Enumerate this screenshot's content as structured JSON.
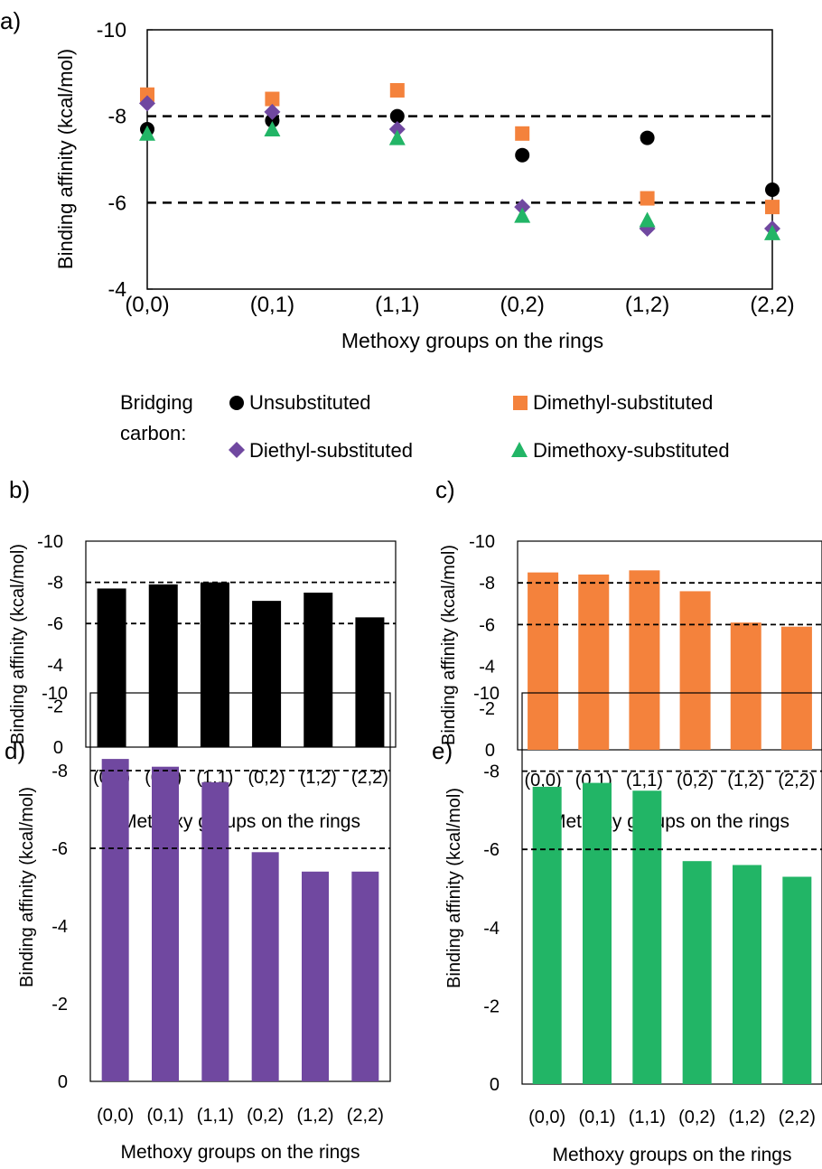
{
  "colors": {
    "unsubstituted": "#000000",
    "dimethyl": "#F4823C",
    "diethyl": "#7048A0",
    "dimethoxy": "#22B566"
  },
  "legend": {
    "title_line1": "Bridging",
    "title_line2": "carbon:",
    "items": [
      {
        "label": "Unsubstituted",
        "marker": "circle",
        "color": "#000000"
      },
      {
        "label": "Dimethyl-substituted",
        "marker": "square",
        "color": "#F4823C"
      },
      {
        "label": "Diethyl-substituted",
        "marker": "diamond",
        "color": "#7048A0"
      },
      {
        "label": "Dimethoxy-substituted",
        "marker": "triangle",
        "color": "#22B566"
      }
    ]
  },
  "chart_data": [
    {
      "panel": "a)",
      "type": "scatter",
      "categories": [
        "(0,0)",
        "(0,1)",
        "(1,1)",
        "(0,2)",
        "(1,2)",
        "(2,2)"
      ],
      "series": [
        {
          "name": "Unsubstituted",
          "marker": "circle",
          "color": "#000000",
          "values": [
            -7.7,
            -7.9,
            -8.0,
            -7.1,
            -7.5,
            -6.3
          ]
        },
        {
          "name": "Dimethyl-substituted",
          "marker": "square",
          "color": "#F4823C",
          "values": [
            -8.5,
            -8.4,
            -8.6,
            -7.6,
            -6.1,
            -5.9
          ]
        },
        {
          "name": "Diethyl-substituted",
          "marker": "diamond",
          "color": "#7048A0",
          "values": [
            -8.3,
            -8.1,
            -7.7,
            -5.9,
            -5.4,
            -5.4
          ]
        },
        {
          "name": "Dimethoxy-substituted",
          "marker": "triangle",
          "color": "#22B566",
          "values": [
            -7.6,
            -7.7,
            -7.5,
            -5.7,
            -5.6,
            -5.3
          ]
        }
      ],
      "ylim": [
        -4,
        -10
      ],
      "yticks": [
        "-10",
        "-8",
        "-6",
        "-4"
      ],
      "reference_lines": [
        -8,
        -6
      ],
      "xlabel": "Methoxy groups on the rings",
      "ylabel": "Binding affinity (kcal/mol)"
    },
    {
      "panel": "b)",
      "type": "bar",
      "color": "#000000",
      "categories": [
        "(0,0)",
        "(0,1)",
        "(1,1)",
        "(0,2)",
        "(1,2)",
        "(2,2)"
      ],
      "values": [
        -7.7,
        -7.9,
        -8.0,
        -7.1,
        -7.5,
        -6.3
      ],
      "ylim": [
        0,
        -10
      ],
      "yticks": [
        "-10",
        "-8",
        "-6",
        "-4",
        "-2",
        "0"
      ],
      "reference_lines": [
        -8,
        -6
      ],
      "xlabel": "Methoxy groups on the rings",
      "ylabel": "Binding affinity (kcal/mol)"
    },
    {
      "panel": "c)",
      "type": "bar",
      "color": "#F4823C",
      "categories": [
        "(0,0)",
        "(0,1)",
        "(1,1)",
        "(0,2)",
        "(1,2)",
        "(2,2)"
      ],
      "values": [
        -8.5,
        -8.4,
        -8.6,
        -7.6,
        -6.1,
        -5.9
      ],
      "ylim": [
        0,
        -10
      ],
      "yticks": [
        "-10",
        "-8",
        "-6",
        "-4",
        "-2",
        "0"
      ],
      "reference_lines": [
        -8,
        -6
      ],
      "xlabel": "Methoxy groups on the rings",
      "ylabel": "Binding affinity (kcal/mol)"
    },
    {
      "panel": "d)",
      "type": "bar",
      "color": "#7048A0",
      "categories": [
        "(0,0)",
        "(0,1)",
        "(1,1)",
        "(0,2)",
        "(1,2)",
        "(2,2)"
      ],
      "values": [
        -8.3,
        -8.1,
        -7.7,
        -5.9,
        -5.4,
        -5.4
      ],
      "ylim": [
        0,
        -10
      ],
      "yticks": [
        "-10",
        "-8",
        "-6",
        "-4",
        "-2",
        "0"
      ],
      "reference_lines": [
        -8,
        -6
      ],
      "xlabel": "Methoxy groups on the rings",
      "ylabel": "Binding affinity (kcal/mol)"
    },
    {
      "panel": "e)",
      "type": "bar",
      "color": "#22B566",
      "categories": [
        "(0,0)",
        "(0,1)",
        "(1,1)",
        "(0,2)",
        "(1,2)",
        "(2,2)"
      ],
      "values": [
        -7.6,
        -7.7,
        -7.5,
        -5.7,
        -5.6,
        -5.3
      ],
      "ylim": [
        0,
        -10
      ],
      "yticks": [
        "-10",
        "-8",
        "-6",
        "-4",
        "-2",
        "0"
      ],
      "reference_lines": [
        -8,
        -6
      ],
      "xlabel": "Methoxy groups on the rings",
      "ylabel": "Binding affinity (kcal/mol)"
    }
  ]
}
